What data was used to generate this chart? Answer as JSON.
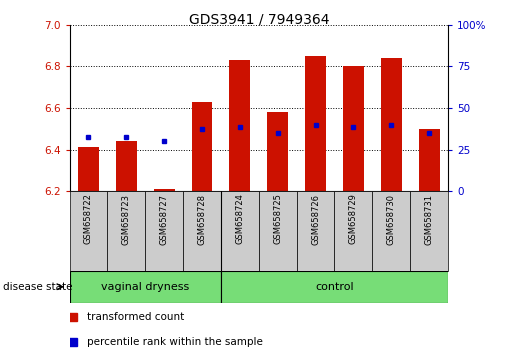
{
  "title": "GDS3941 / 7949364",
  "samples": [
    "GSM658722",
    "GSM658723",
    "GSM658727",
    "GSM658728",
    "GSM658724",
    "GSM658725",
    "GSM658726",
    "GSM658729",
    "GSM658730",
    "GSM658731"
  ],
  "red_bottom": [
    6.2,
    6.2,
    6.2,
    6.2,
    6.2,
    6.2,
    6.2,
    6.2,
    6.2,
    6.2
  ],
  "red_top": [
    6.41,
    6.44,
    6.21,
    6.63,
    6.83,
    6.58,
    6.85,
    6.8,
    6.84,
    6.5
  ],
  "blue_val": [
    6.46,
    6.46,
    6.44,
    6.5,
    6.51,
    6.48,
    6.52,
    6.51,
    6.52,
    6.48
  ],
  "ylim_left": [
    6.2,
    7.0
  ],
  "ylim_right": [
    0,
    100
  ],
  "yticks_left": [
    6.2,
    6.4,
    6.6,
    6.8,
    7.0
  ],
  "yticks_right": [
    0,
    25,
    50,
    75,
    100
  ],
  "group1_label": "vaginal dryness",
  "group2_label": "control",
  "group_color": "#77dd77",
  "bar_color": "#cc1100",
  "blue_color": "#0000cc",
  "disease_state_label": "disease state",
  "legend_red": "transformed count",
  "legend_blue": "percentile rank within the sample",
  "bar_width": 0.55,
  "xlim": [
    -0.5,
    9.5
  ],
  "label_box_color": "#cccccc",
  "n_group1": 4,
  "n_group2": 6
}
